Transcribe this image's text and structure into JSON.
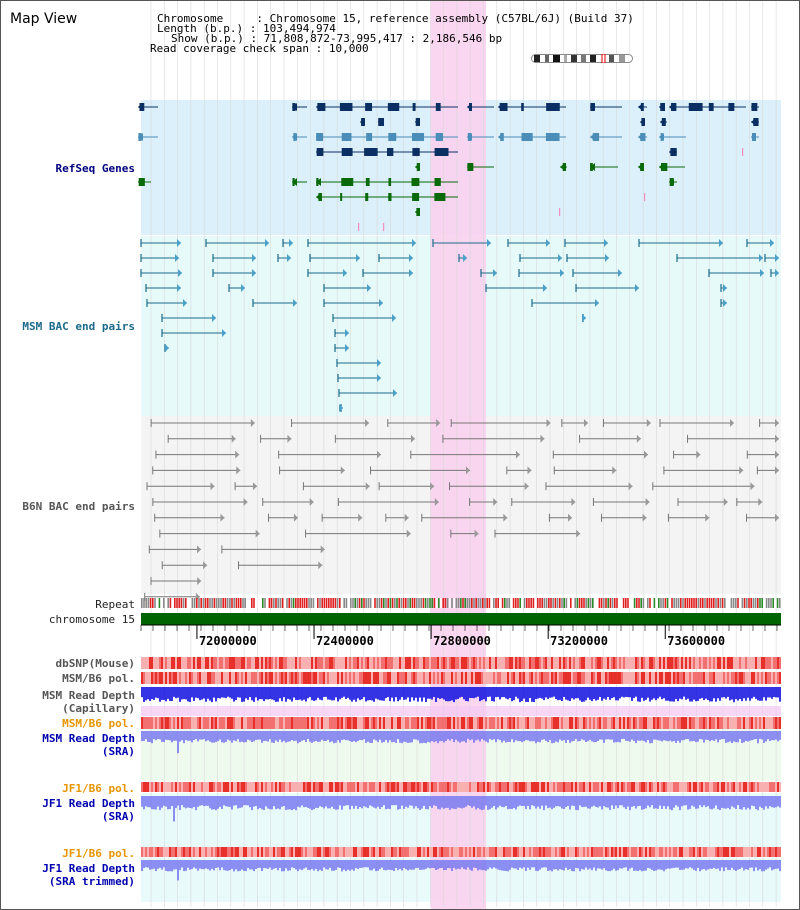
{
  "title": "Map View",
  "info": {
    "chromosome_label": "Chromosome",
    "chromosome_value": "Chromosome 15, reference assembly (C57BL/6J) (Build 37)",
    "length_label": "Length (b.p.)",
    "length_value": "103,494,974",
    "show_label": "Show (b.p.)",
    "show_value": "71,808,872-73,995,417 : 2,186,546 bp",
    "coverage_label": "Read coverage check span",
    "coverage_value": "10,000"
  },
  "tracks": {
    "refseq": "RefSeq Genes",
    "msm_bac": "MSM BAC end pairs",
    "b6n_bac": "B6N BAC end pairs",
    "repeat": "Repeat",
    "chromosome": "chromosome 15",
    "dbsnp": "dbSNP(Mouse)",
    "msm_b6_pol": "MSM/B6 pol.",
    "msm_read_depth_cap_1": "MSM Read Depth",
    "msm_read_depth_cap_2": "(Capillary)",
    "msm_b6_pol_2": "MSM/B6 pol.",
    "msm_read_depth_sra_1": "MSM Read Depth",
    "msm_read_depth_sra_2": "(SRA)",
    "jf1_b6_pol": "JF1/B6 pol.",
    "jf1_read_depth_1": "JF1 Read Depth",
    "jf1_read_depth_2": "(SRA)",
    "jf1_b6_pol_2": "JF1/B6 pol.",
    "jf1_trimmed_1": "JF1 Read Depth",
    "jf1_trimmed_2": "(SRA trimmed)"
  },
  "axis": {
    "ticks": [
      "72000000",
      "72400000",
      "72800000",
      "73200000",
      "73600000"
    ],
    "tick_values": [
      72000000,
      72400000,
      72800000,
      73200000,
      73600000
    ],
    "range": [
      71808872,
      73995417
    ]
  },
  "highlight": {
    "start": 72799000,
    "end": 72988000
  },
  "colors": {
    "refseq_bg": "#dbf0fa",
    "bac_bg": "#e6fafa",
    "b6n_bg": "#f4f4f4",
    "highlight": "#f9d2ee",
    "gene_dark": "#0b2f63",
    "gene_mid": "#4a8db8",
    "gene_green": "#0a6a0a",
    "chromosome": "#006400",
    "read_depth_blue": "#1010e0",
    "read_depth_violet": "#7a7af0",
    "pol_red": "#e8302a"
  }
}
